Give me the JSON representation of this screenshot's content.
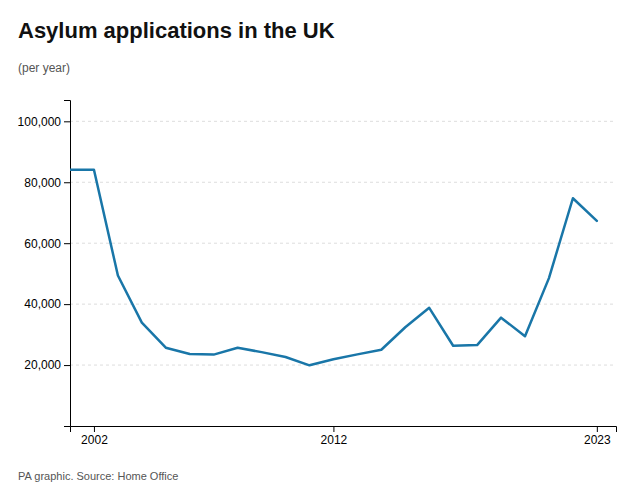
{
  "chart_data": {
    "type": "line",
    "title": "Asylum applications in the UK",
    "ylabel": "(per year)",
    "source": "PA graphic. Source: Home Office",
    "color": "#1976a8",
    "x": [
      2001,
      2002,
      2003,
      2004,
      2005,
      2006,
      2007,
      2008,
      2009,
      2010,
      2011,
      2012,
      2013,
      2014,
      2015,
      2016,
      2017,
      2018,
      2019,
      2020,
      2021,
      2022,
      2023
    ],
    "values": [
      84132,
      84130,
      49405,
      33930,
      25710,
      23610,
      23430,
      25670,
      24250,
      22640,
      19918,
      21905,
      23508,
      25020,
      32414,
      38782,
      26350,
      26547,
      35566,
      29456,
      48540,
      74751,
      67337
    ],
    "xlim": [
      2001,
      2023.8
    ],
    "xticks": [
      2002,
      2012,
      2023
    ],
    "ylim": [
      0,
      107000
    ],
    "yticks": [
      {
        "value": 20000,
        "label": "20,000"
      },
      {
        "value": 40000,
        "label": "40,000"
      },
      {
        "value": 60000,
        "label": "60,000"
      },
      {
        "value": 80000,
        "label": "80,000"
      },
      {
        "value": 100000,
        "label": "100,000"
      }
    ],
    "grid": true
  }
}
